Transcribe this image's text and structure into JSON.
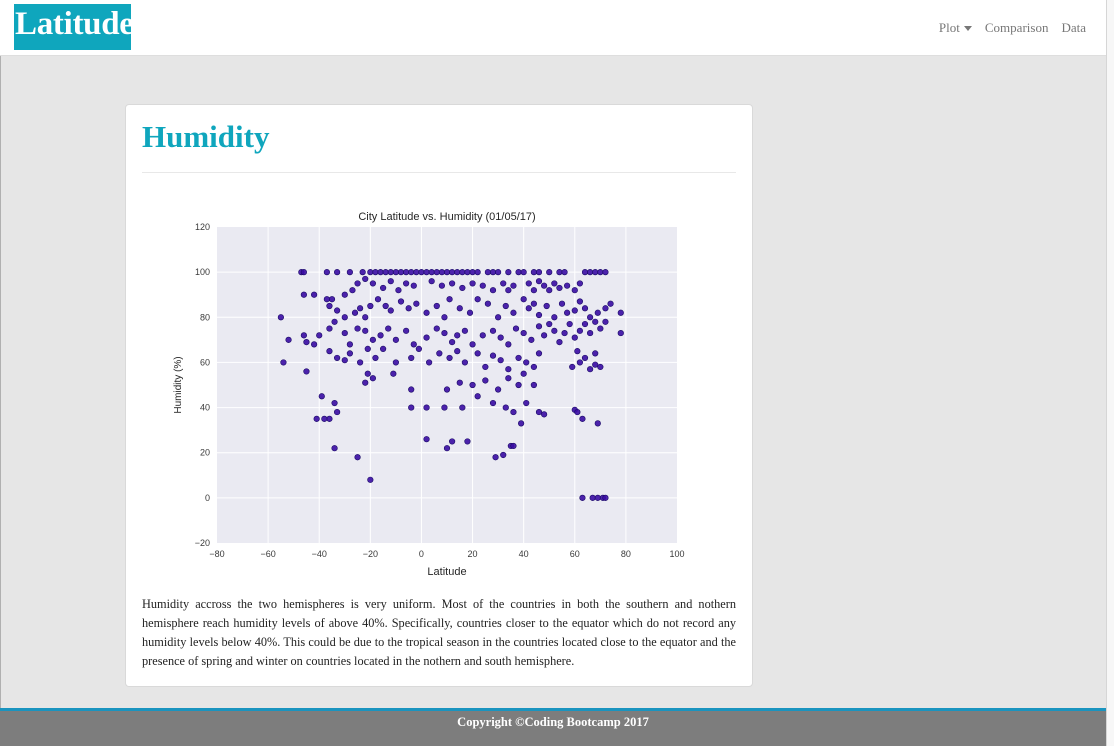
{
  "brand": "Latitude",
  "nav": {
    "plot": "Plot",
    "comparison": "Comparison",
    "data": "Data"
  },
  "panel": {
    "title": "Humidity",
    "description": "Humidity accross the two hemispheres is very uniform. Most of the countries in both the southern and nothern hemisphere reach humidity levels of above 40%. Specifically, countries closer to the equator which do not record any humidity levels below 40%. This could be due to the tropical season in the countries located close to the equator and the presence of spring and winter on countries located in the nothern and south hemisphere."
  },
  "footer": "Copyright ©Coding Bootcamp 2017",
  "colors": {
    "accent": "#0fa6bd",
    "point": "#3a0ca3",
    "plot_bg": "#eaeaf2"
  },
  "chart_data": {
    "type": "scatter",
    "title": "City Latitude vs. Humidity (01/05/17)",
    "xlabel": "Latitude",
    "ylabel": "Humidity (%)",
    "xlim": [
      -80,
      100
    ],
    "ylim": [
      -20,
      120
    ],
    "xticks": [
      -80,
      -60,
      -40,
      -20,
      0,
      20,
      40,
      60,
      80,
      100
    ],
    "yticks": [
      -20,
      0,
      20,
      40,
      60,
      80,
      100,
      120
    ],
    "grid": true,
    "points": [
      [
        -47,
        100
      ],
      [
        -46,
        100
      ],
      [
        -37,
        100
      ],
      [
        -33,
        100
      ],
      [
        -28,
        100
      ],
      [
        -23,
        100
      ],
      [
        -20,
        100
      ],
      [
        -18,
        100
      ],
      [
        -16,
        100
      ],
      [
        -14,
        100
      ],
      [
        -12,
        100
      ],
      [
        -10,
        100
      ],
      [
        -8,
        100
      ],
      [
        -6,
        100
      ],
      [
        -4,
        100
      ],
      [
        -2,
        100
      ],
      [
        0,
        100
      ],
      [
        2,
        100
      ],
      [
        4,
        100
      ],
      [
        6,
        100
      ],
      [
        8,
        100
      ],
      [
        10,
        100
      ],
      [
        12,
        100
      ],
      [
        14,
        100
      ],
      [
        16,
        100
      ],
      [
        18,
        100
      ],
      [
        20,
        100
      ],
      [
        22,
        100
      ],
      [
        26,
        100
      ],
      [
        28,
        100
      ],
      [
        30,
        100
      ],
      [
        34,
        100
      ],
      [
        38,
        100
      ],
      [
        40,
        100
      ],
      [
        44,
        100
      ],
      [
        46,
        100
      ],
      [
        50,
        100
      ],
      [
        54,
        100
      ],
      [
        56,
        100
      ],
      [
        64,
        100
      ],
      [
        66,
        100
      ],
      [
        68,
        100
      ],
      [
        70,
        100
      ],
      [
        72,
        100
      ],
      [
        -46,
        90
      ],
      [
        -42,
        90
      ],
      [
        -37,
        88
      ],
      [
        -35,
        88
      ],
      [
        -30,
        90
      ],
      [
        -27,
        92
      ],
      [
        -25,
        95
      ],
      [
        -22,
        97
      ],
      [
        -19,
        95
      ],
      [
        -15,
        93
      ],
      [
        -12,
        96
      ],
      [
        -9,
        92
      ],
      [
        -6,
        95
      ],
      [
        -3,
        94
      ],
      [
        4,
        96
      ],
      [
        8,
        94
      ],
      [
        12,
        95
      ],
      [
        16,
        93
      ],
      [
        20,
        95
      ],
      [
        24,
        94
      ],
      [
        28,
        92
      ],
      [
        32,
        95
      ],
      [
        34,
        92
      ],
      [
        36,
        94
      ],
      [
        42,
        95
      ],
      [
        44,
        92
      ],
      [
        46,
        96
      ],
      [
        48,
        94
      ],
      [
        50,
        92
      ],
      [
        52,
        95
      ],
      [
        54,
        93
      ],
      [
        57,
        94
      ],
      [
        60,
        92
      ],
      [
        62,
        95
      ],
      [
        -36,
        85
      ],
      [
        -33,
        83
      ],
      [
        -30,
        80
      ],
      [
        -26,
        82
      ],
      [
        -24,
        84
      ],
      [
        -22,
        80
      ],
      [
        -20,
        85
      ],
      [
        -17,
        88
      ],
      [
        -14,
        85
      ],
      [
        -12,
        83
      ],
      [
        -8,
        87
      ],
      [
        -5,
        84
      ],
      [
        -2,
        86
      ],
      [
        2,
        82
      ],
      [
        6,
        85
      ],
      [
        9,
        80
      ],
      [
        11,
        88
      ],
      [
        15,
        84
      ],
      [
        19,
        82
      ],
      [
        22,
        88
      ],
      [
        26,
        86
      ],
      [
        30,
        80
      ],
      [
        33,
        85
      ],
      [
        36,
        82
      ],
      [
        40,
        88
      ],
      [
        42,
        84
      ],
      [
        44,
        86
      ],
      [
        46,
        81
      ],
      [
        49,
        85
      ],
      [
        52,
        80
      ],
      [
        55,
        86
      ],
      [
        57,
        82
      ],
      [
        60,
        83
      ],
      [
        62,
        87
      ],
      [
        64,
        84
      ],
      [
        66,
        80
      ],
      [
        69,
        82
      ],
      [
        72,
        84
      ],
      [
        74,
        86
      ],
      [
        78,
        82
      ],
      [
        -55,
        80
      ],
      [
        -52,
        70
      ],
      [
        -46,
        72
      ],
      [
        -45,
        69
      ],
      [
        -42,
        68
      ],
      [
        -40,
        72
      ],
      [
        -36,
        75
      ],
      [
        -34,
        78
      ],
      [
        -30,
        73
      ],
      [
        -28,
        68
      ],
      [
        -25,
        75
      ],
      [
        -22,
        74
      ],
      [
        -19,
        70
      ],
      [
        -16,
        72
      ],
      [
        -13,
        75
      ],
      [
        -10,
        70
      ],
      [
        -6,
        74
      ],
      [
        -3,
        68
      ],
      [
        2,
        71
      ],
      [
        6,
        75
      ],
      [
        9,
        73
      ],
      [
        12,
        69
      ],
      [
        14,
        72
      ],
      [
        17,
        74
      ],
      [
        20,
        68
      ],
      [
        24,
        72
      ],
      [
        28,
        74
      ],
      [
        31,
        71
      ],
      [
        34,
        68
      ],
      [
        37,
        75
      ],
      [
        40,
        73
      ],
      [
        43,
        70
      ],
      [
        46,
        76
      ],
      [
        48,
        72
      ],
      [
        50,
        77
      ],
      [
        52,
        74
      ],
      [
        54,
        69
      ],
      [
        56,
        73
      ],
      [
        58,
        77
      ],
      [
        60,
        71
      ],
      [
        62,
        74
      ],
      [
        64,
        77
      ],
      [
        66,
        73
      ],
      [
        68,
        78
      ],
      [
        70,
        75
      ],
      [
        72,
        78
      ],
      [
        78,
        73
      ],
      [
        -54,
        60
      ],
      [
        -45,
        56
      ],
      [
        -36,
        65
      ],
      [
        -33,
        62
      ],
      [
        -30,
        61
      ],
      [
        -28,
        64
      ],
      [
        -24,
        60
      ],
      [
        -21,
        66
      ],
      [
        -18,
        62
      ],
      [
        -15,
        66
      ],
      [
        -10,
        60
      ],
      [
        -4,
        62
      ],
      [
        -1,
        66
      ],
      [
        3,
        60
      ],
      [
        7,
        64
      ],
      [
        11,
        62
      ],
      [
        14,
        65
      ],
      [
        17,
        60
      ],
      [
        22,
        64
      ],
      [
        25,
        58
      ],
      [
        28,
        63
      ],
      [
        31,
        61
      ],
      [
        34,
        57
      ],
      [
        38,
        62
      ],
      [
        41,
        60
      ],
      [
        44,
        58
      ],
      [
        46,
        64
      ],
      [
        59,
        58
      ],
      [
        62,
        60
      ],
      [
        64,
        62
      ],
      [
        66,
        57
      ],
      [
        68,
        59
      ],
      [
        70,
        58
      ],
      [
        68,
        64
      ],
      [
        61,
        65
      ],
      [
        -21,
        55
      ],
      [
        -19,
        53
      ],
      [
        -11,
        55
      ],
      [
        -22,
        51
      ],
      [
        20,
        50
      ],
      [
        25,
        52
      ],
      [
        30,
        48
      ],
      [
        34,
        53
      ],
      [
        38,
        50
      ],
      [
        40,
        55
      ],
      [
        44,
        50
      ],
      [
        15,
        51
      ],
      [
        10,
        48
      ],
      [
        -4,
        48
      ],
      [
        -39,
        45
      ],
      [
        -34,
        42
      ],
      [
        -33,
        38
      ],
      [
        -36,
        35
      ],
      [
        -38,
        35
      ],
      [
        -41,
        35
      ],
      [
        -4,
        40
      ],
      [
        2,
        40
      ],
      [
        9,
        40
      ],
      [
        16,
        40
      ],
      [
        22,
        45
      ],
      [
        28,
        42
      ],
      [
        33,
        40
      ],
      [
        36,
        38
      ],
      [
        41,
        42
      ],
      [
        46,
        38
      ],
      [
        48,
        37
      ],
      [
        60,
        39
      ],
      [
        61,
        38
      ],
      [
        63,
        35
      ],
      [
        69,
        33
      ],
      [
        -34,
        22
      ],
      [
        -25,
        18
      ],
      [
        -20,
        8
      ],
      [
        2,
        26
      ],
      [
        10,
        22
      ],
      [
        12,
        25
      ],
      [
        18,
        25
      ],
      [
        29,
        18
      ],
      [
        32,
        19
      ],
      [
        35,
        23
      ],
      [
        36,
        23
      ],
      [
        39,
        33
      ],
      [
        63,
        0
      ],
      [
        67,
        0
      ],
      [
        69,
        0
      ],
      [
        71,
        0
      ],
      [
        72,
        0
      ]
    ]
  }
}
